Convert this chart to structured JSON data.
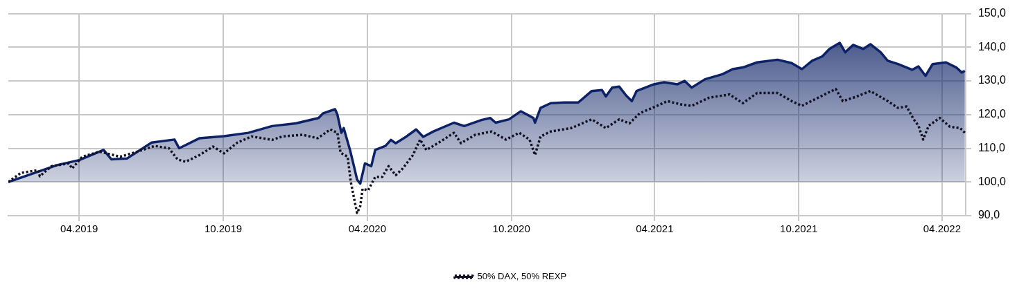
{
  "chart_data": {
    "type": "line",
    "legend": "bottom",
    "grid": true,
    "marker": "none",
    "xlim": [
      "2019-01-01",
      "2022-05-01"
    ],
    "xticks": [
      {
        "value": "2019-04-01",
        "label": "04.2019"
      },
      {
        "value": "2019-10-01",
        "label": "10.2019"
      },
      {
        "value": "2020-04-01",
        "label": "04.2020"
      },
      {
        "value": "2020-10-01",
        "label": "10.2020"
      },
      {
        "value": "2021-04-01",
        "label": "04.2021"
      },
      {
        "value": "2021-10-01",
        "label": "10.2021"
      },
      {
        "value": "2022-04-01",
        "label": "04.2022"
      }
    ],
    "ylim": [
      90,
      150
    ],
    "yticks": [
      {
        "value": 90,
        "label": "90,0"
      },
      {
        "value": 100,
        "label": "100,0"
      },
      {
        "value": 110,
        "label": "110,0"
      },
      {
        "value": 120,
        "label": "120,0"
      },
      {
        "value": 130,
        "label": "130,0"
      },
      {
        "value": 140,
        "label": "140,0"
      },
      {
        "value": 150,
        "label": "150,0"
      }
    ],
    "series": [
      {
        "type": "area",
        "color": "#0d2266",
        "line_style": "solid",
        "x": [
          "2019-01-01",
          "2019-02-01",
          "2019-03-04",
          "2019-04-01",
          "2019-05-02",
          "2019-05-12",
          "2019-06-01",
          "2019-07-02",
          "2019-07-31",
          "2019-08-06",
          "2019-09-01",
          "2019-10-02",
          "2019-11-02",
          "2019-12-02",
          "2020-01-01",
          "2020-01-30",
          "2020-02-05",
          "2020-02-20",
          "2020-02-23",
          "2020-02-28",
          "2020-03-02",
          "2020-03-10",
          "2020-03-15",
          "2020-03-19",
          "2020-03-23",
          "2020-03-29",
          "2020-04-06",
          "2020-04-11",
          "2020-04-24",
          "2020-05-01",
          "2020-05-07",
          "2020-05-20",
          "2020-06-02",
          "2020-06-11",
          "2020-06-24",
          "2020-07-20",
          "2020-08-02",
          "2020-08-24",
          "2020-09-04",
          "2020-09-11",
          "2020-09-28",
          "2020-10-13",
          "2020-10-29",
          "2020-10-31",
          "2020-11-07",
          "2020-11-20",
          "2020-12-07",
          "2020-12-25",
          "2021-01-11",
          "2021-01-24",
          "2021-01-29",
          "2021-02-06",
          "2021-02-15",
          "2021-02-24",
          "2021-03-03",
          "2021-03-09",
          "2021-03-31",
          "2021-04-13",
          "2021-04-30",
          "2021-05-09",
          "2021-05-18",
          "2021-06-04",
          "2021-06-26",
          "2021-07-09",
          "2021-07-22",
          "2021-08-09",
          "2021-09-04",
          "2021-09-22",
          "2021-10-05",
          "2021-10-18",
          "2021-10-31",
          "2021-11-09",
          "2021-11-22",
          "2021-11-29",
          "2021-12-09",
          "2021-12-22",
          "2021-12-31",
          "2022-01-13",
          "2022-01-22",
          "2022-02-04",
          "2022-02-22",
          "2022-03-02",
          "2022-03-11",
          "2022-03-20",
          "2022-04-06",
          "2022-04-19",
          "2022-04-26",
          "2022-04-30"
        ],
        "values": [
          100,
          102.5,
          105,
          106.5,
          109.5,
          106.7,
          107,
          111.7,
          112.6,
          110,
          113,
          113.6,
          114.6,
          116.6,
          117.4,
          119,
          120.4,
          121.6,
          120,
          114.6,
          116,
          109.5,
          104.7,
          100.7,
          99.5,
          105.5,
          104.7,
          109.5,
          110.7,
          112.5,
          111.5,
          113.4,
          115.6,
          113.4,
          115,
          117.6,
          116.6,
          118.4,
          119,
          117.6,
          118.6,
          121,
          119,
          117.6,
          122,
          123.4,
          123.6,
          123.6,
          127,
          127.3,
          125.4,
          128,
          128.3,
          125.6,
          124,
          127,
          129,
          129.6,
          129,
          130,
          128,
          130.5,
          132,
          133.5,
          134,
          135.5,
          136.3,
          135.3,
          133.5,
          136,
          137.3,
          139.5,
          141.3,
          138.5,
          140.7,
          139.5,
          140.9,
          138.5,
          136,
          135,
          133.3,
          134.3,
          131.5,
          135,
          135.5,
          134,
          132.5,
          133
        ]
      },
      {
        "name": "50% DAX, 50% REXP",
        "type": "line",
        "color": "#111122",
        "line_style": "dotted",
        "x": [
          "2019-01-01",
          "2019-01-17",
          "2019-02-08",
          "2019-02-10",
          "2019-02-25",
          "2019-03-19",
          "2019-03-23",
          "2019-04-05",
          "2019-04-27",
          "2019-05-23",
          "2019-06-14",
          "2019-07-06",
          "2019-07-24",
          "2019-08-04",
          "2019-08-14",
          "2019-09-01",
          "2019-09-18",
          "2019-10-02",
          "2019-10-19",
          "2019-11-06",
          "2019-12-02",
          "2019-12-15",
          "2020-01-10",
          "2020-01-29",
          "2020-02-14",
          "2020-02-23",
          "2020-02-27",
          "2020-03-07",
          "2020-03-11",
          "2020-03-16",
          "2020-03-19",
          "2020-03-23",
          "2020-03-26",
          "2020-04-02",
          "2020-04-11",
          "2020-04-20",
          "2020-04-28",
          "2020-05-07",
          "2020-05-16",
          "2020-05-29",
          "2020-06-07",
          "2020-06-15",
          "2020-07-03",
          "2020-07-20",
          "2020-07-29",
          "2020-08-16",
          "2020-09-06",
          "2020-09-24",
          "2020-10-11",
          "2020-10-24",
          "2020-10-31",
          "2020-11-07",
          "2020-11-20",
          "2020-12-16",
          "2021-01-11",
          "2021-01-29",
          "2021-02-15",
          "2021-02-28",
          "2021-03-13",
          "2021-04-04",
          "2021-04-17",
          "2021-05-05",
          "2021-05-18",
          "2021-06-09",
          "2021-07-05",
          "2021-07-22",
          "2021-08-09",
          "2021-09-04",
          "2021-09-22",
          "2021-10-05",
          "2021-10-22",
          "2021-11-17",
          "2021-11-26",
          "2021-12-14",
          "2021-12-31",
          "2022-01-22",
          "2022-02-04",
          "2022-02-15",
          "2022-02-24",
          "2022-03-02",
          "2022-03-08",
          "2022-03-15",
          "2022-03-29",
          "2022-04-11",
          "2022-04-24",
          "2022-04-30"
        ],
        "values": [
          100,
          102.7,
          103.5,
          101.7,
          104.7,
          105.5,
          104,
          107.5,
          109,
          107.5,
          109,
          110.7,
          110,
          106.7,
          106,
          108,
          110.5,
          108.5,
          111.7,
          113.5,
          112.5,
          113.5,
          114,
          113,
          115.6,
          114.6,
          108.7,
          107.5,
          100,
          94.2,
          90.8,
          92.8,
          98,
          97.5,
          101.5,
          101.5,
          104.7,
          102,
          104,
          108,
          112.6,
          109.5,
          112,
          114.6,
          111.5,
          114,
          115,
          112.6,
          114.6,
          112.6,
          108,
          113.5,
          115,
          116,
          118.6,
          116,
          118.6,
          117.4,
          120.4,
          122.6,
          124,
          123,
          122.6,
          125,
          126,
          123.4,
          126.4,
          126.4,
          124,
          122.6,
          124.6,
          127.6,
          124,
          125.4,
          127,
          124,
          122,
          122.4,
          118.6,
          116.7,
          112.6,
          116.7,
          119,
          116.4,
          116,
          114.6
        ]
      }
    ]
  }
}
